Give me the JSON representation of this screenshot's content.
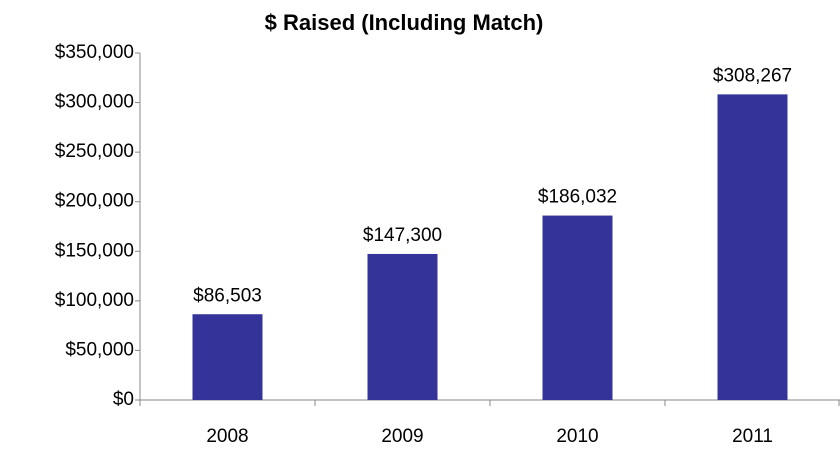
{
  "chart_data": {
    "type": "bar",
    "title": "$ Raised (Including Match)",
    "categories": [
      "2008",
      "2009",
      "2010",
      "2011"
    ],
    "values": [
      86503,
      147300,
      186032,
      308267
    ],
    "value_labels": [
      "$86,503",
      "$147,300",
      "$186,032",
      "$308,267"
    ],
    "color": "#333399",
    "ylim": [
      0,
      350000
    ],
    "yticks": [
      {
        "value": 0,
        "label": "$0"
      },
      {
        "value": 50000,
        "label": "$50,000"
      },
      {
        "value": 100000,
        "label": "$100,000"
      },
      {
        "value": 150000,
        "label": "$150,000"
      },
      {
        "value": 200000,
        "label": "$200,000"
      },
      {
        "value": 250000,
        "label": "$250,000"
      },
      {
        "value": 300000,
        "label": "$300,000"
      },
      {
        "value": 350000,
        "label": "$350,000"
      }
    ],
    "grid": false
  }
}
